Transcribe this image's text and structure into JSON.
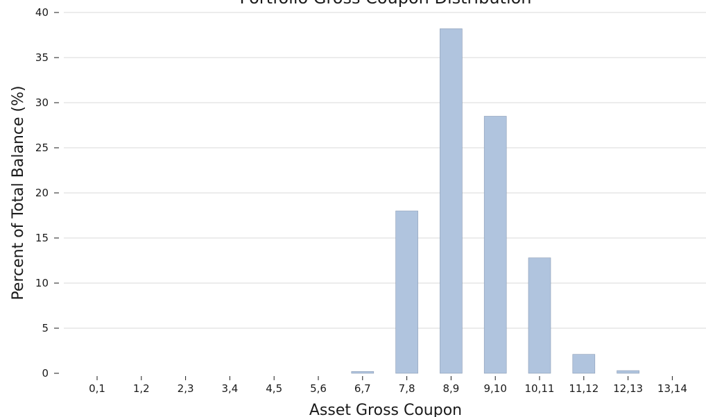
{
  "chart_data": {
    "type": "bar",
    "title": "Portfolio Gross Coupon Distribution",
    "xlabel": "Asset Gross Coupon",
    "ylabel": "Percent of Total Balance (%)",
    "categories": [
      "0,1",
      "1,2",
      "2,3",
      "3,4",
      "4,5",
      "5,6",
      "6,7",
      "7,8",
      "8,9",
      "9,10",
      "10,11",
      "11,12",
      "12,13",
      "13,14"
    ],
    "values": [
      0,
      0,
      0,
      0,
      0,
      0,
      0.2,
      18.0,
      38.2,
      28.5,
      12.8,
      2.1,
      0.3,
      0
    ],
    "ylim": [
      0,
      40
    ],
    "yticks": [
      0,
      5,
      10,
      15,
      20,
      25,
      30,
      35,
      40
    ],
    "grid": "horizontal",
    "bar_color": "#b0c4de",
    "grid_color": "#ececec"
  }
}
